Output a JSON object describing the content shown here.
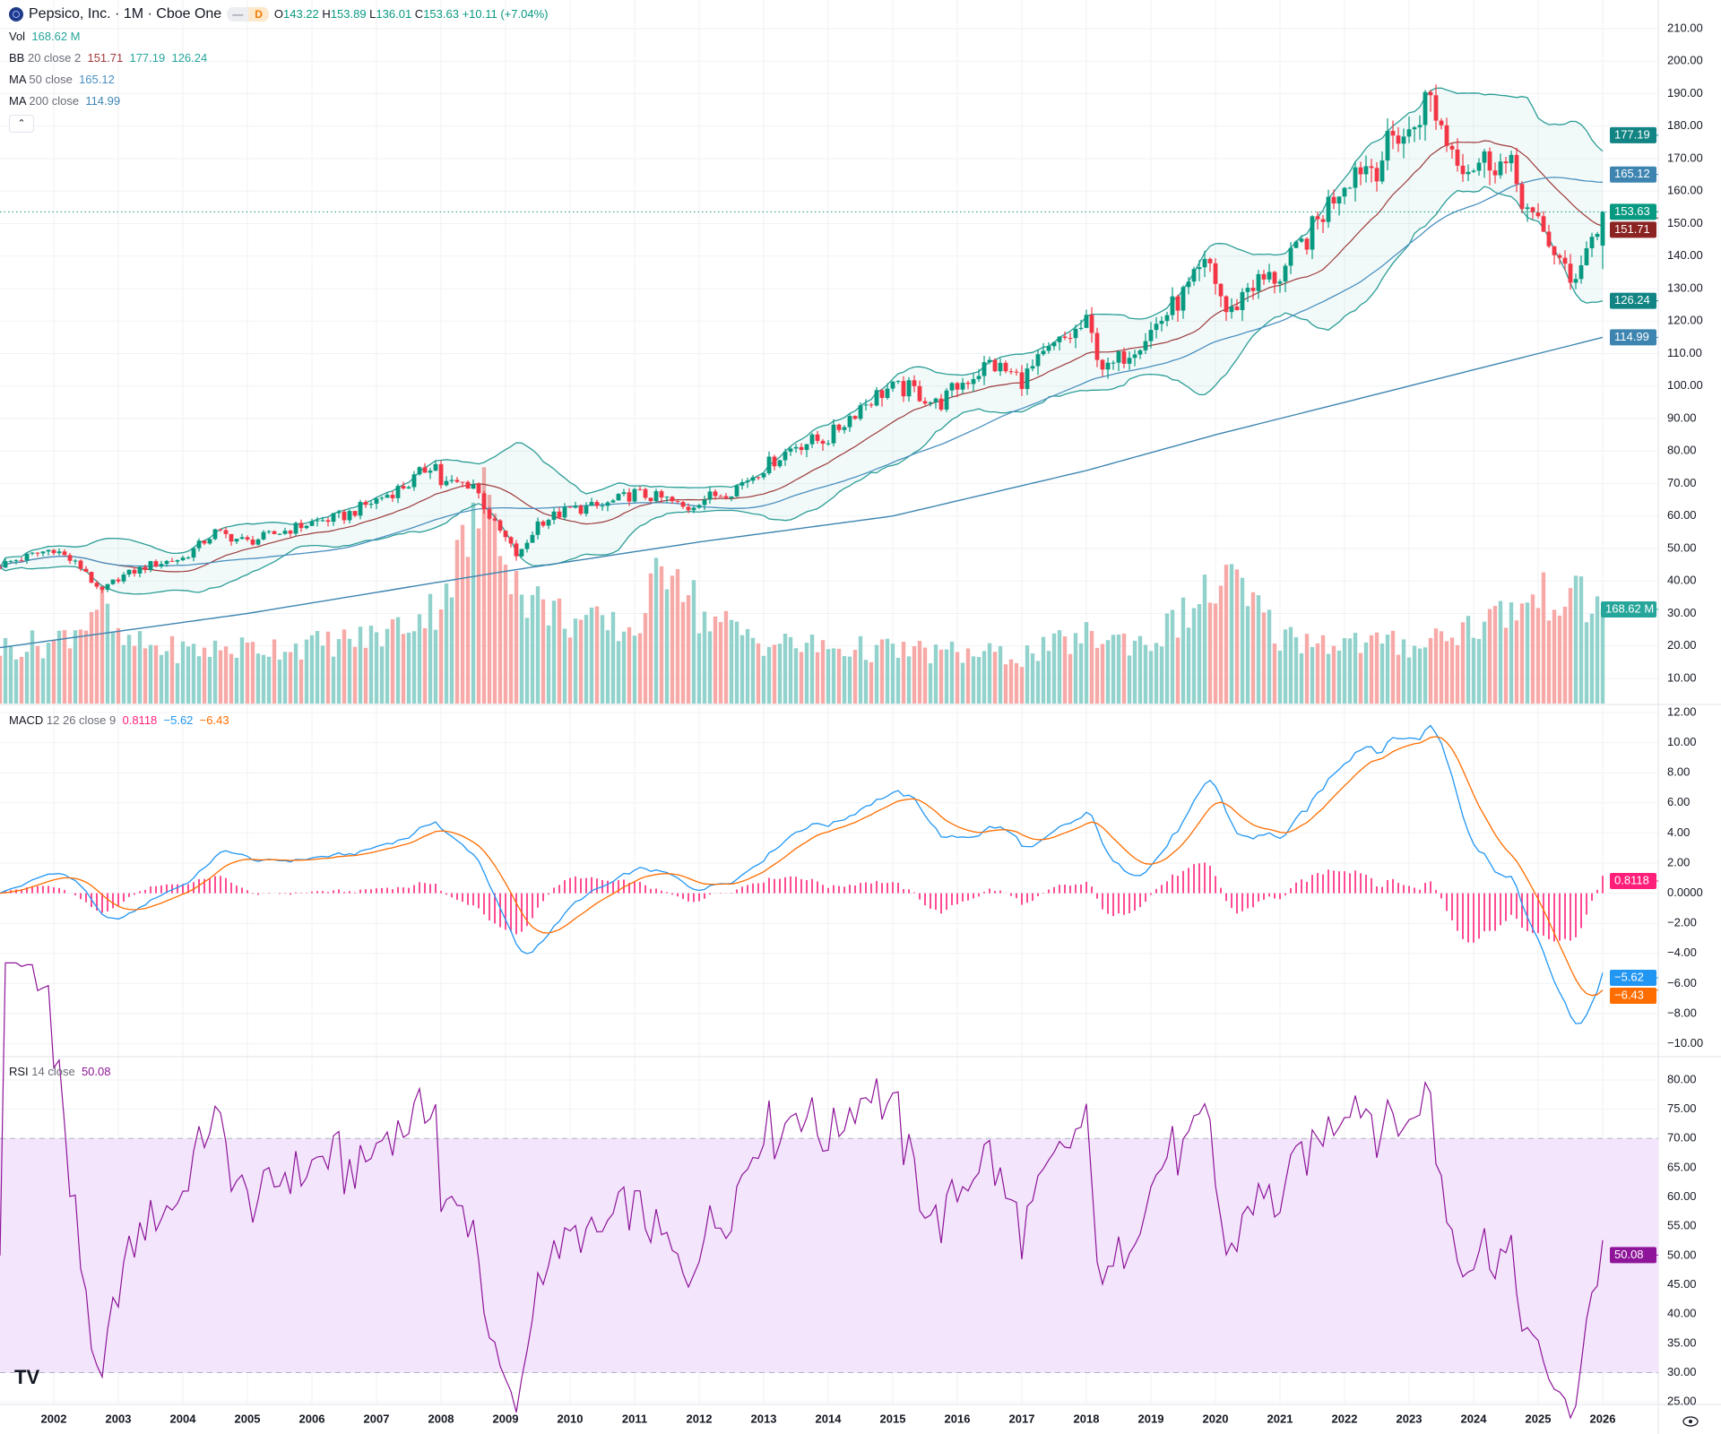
{
  "header": {
    "title": "Pepsico, Inc. · 1M · Cboe One",
    "pill_left": "—",
    "pill_right": "D",
    "ohlc": {
      "o_label": "O",
      "o": "143.22",
      "h_label": "H",
      "h": "153.89",
      "l_label": "L",
      "l": "136.01",
      "c_label": "C",
      "c": "153.63",
      "change": "+10.11 (+7.04%)"
    }
  },
  "legends": {
    "vol": {
      "name": "Vol",
      "value": "168.62 M"
    },
    "bb": {
      "name": "BB",
      "params": "20 close 2",
      "basis": "151.71",
      "upper": "177.19",
      "lower": "126.24"
    },
    "ma50": {
      "name": "MA",
      "params": "50 close",
      "value": "165.12"
    },
    "ma200": {
      "name": "MA",
      "params": "200 close",
      "value": "114.99"
    },
    "macd": {
      "name": "MACD",
      "params": "12 26 close 9",
      "hist": "0.8118",
      "macd": "−5.62",
      "signal": "−6.43"
    },
    "rsi": {
      "name": "RSI",
      "params": "14 close",
      "value": "50.08"
    },
    "collapse_icon": "chevron-up"
  },
  "colors": {
    "up": "#089981",
    "down": "#f23645",
    "vol_up": "#92d2cc",
    "vol_down": "#f7a9a7",
    "bb": "#2a9d96",
    "bb_basis": "#9c3b3b",
    "ma50": "#4a90c0",
    "ma200": "#3d85b0",
    "macd": "#2196f3",
    "signal": "#ff6d00",
    "hist": "#ff1f7a",
    "rsi": "#8e1599",
    "rsi_band": "#f3e5fc"
  },
  "chart_data": {
    "type": "candlestick",
    "interval": "1M",
    "x_start": "2001-03",
    "x_end": "2026-01",
    "price_keypoints": [
      [
        2001.17,
        45
      ],
      [
        2002.0,
        50
      ],
      [
        2002.5,
        43
      ],
      [
        2002.7,
        36
      ],
      [
        2003.0,
        41
      ],
      [
        2003.5,
        45
      ],
      [
        2004.0,
        47
      ],
      [
        2004.5,
        55
      ],
      [
        2005.0,
        52
      ],
      [
        2005.5,
        55
      ],
      [
        2006.0,
        58
      ],
      [
        2006.5,
        60
      ],
      [
        2007.0,
        65
      ],
      [
        2007.5,
        70
      ],
      [
        2007.9,
        77
      ],
      [
        2008.0,
        70
      ],
      [
        2008.5,
        70
      ],
      [
        2008.8,
        58
      ],
      [
        2009.0,
        53
      ],
      [
        2009.2,
        47
      ],
      [
        2009.5,
        58
      ],
      [
        2010.0,
        62
      ],
      [
        2010.5,
        63
      ],
      [
        2011.0,
        67
      ],
      [
        2011.5,
        65
      ],
      [
        2011.8,
        62
      ],
      [
        2012.0,
        65
      ],
      [
        2012.5,
        68
      ],
      [
        2013.0,
        75
      ],
      [
        2013.5,
        82
      ],
      [
        2014.0,
        84
      ],
      [
        2014.5,
        94
      ],
      [
        2014.9,
        99
      ],
      [
        2015.3,
        99
      ],
      [
        2015.7,
        94
      ],
      [
        2016.0,
        100
      ],
      [
        2016.5,
        107
      ],
      [
        2017.0,
        102
      ],
      [
        2017.5,
        112
      ],
      [
        2018.0,
        119
      ],
      [
        2018.3,
        104
      ],
      [
        2018.6,
        110
      ],
      [
        2019.0,
        117
      ],
      [
        2019.5,
        128
      ],
      [
        2019.9,
        138
      ],
      [
        2020.2,
        121
      ],
      [
        2020.5,
        131
      ],
      [
        2021.0,
        134
      ],
      [
        2021.5,
        148
      ],
      [
        2021.9,
        161
      ],
      [
        2022.2,
        168
      ],
      [
        2022.5,
        168
      ],
      [
        2022.8,
        178
      ],
      [
        2023.0,
        177
      ],
      [
        2023.3,
        190
      ],
      [
        2023.6,
        175
      ],
      [
        2023.9,
        168
      ],
      [
        2024.3,
        170
      ],
      [
        2024.6,
        166
      ],
      [
        2024.9,
        151
      ],
      [
        2025.2,
        144
      ],
      [
        2025.5,
        131
      ],
      [
        2025.7,
        141
      ],
      [
        2025.9,
        148
      ],
      [
        2026.0,
        153.63
      ]
    ],
    "last_candle": {
      "open": 143.22,
      "high": 153.89,
      "low": 136.01,
      "close": 153.63
    },
    "volume_keypoints_millions": [
      [
        2001.17,
        100
      ],
      [
        2002.0,
        110
      ],
      [
        2002.5,
        150
      ],
      [
        2002.7,
        190
      ],
      [
        2003.0,
        110
      ],
      [
        2004.0,
        95
      ],
      [
        2005.0,
        100
      ],
      [
        2006.0,
        105
      ],
      [
        2007.0,
        120
      ],
      [
        2007.9,
        170
      ],
      [
        2008.8,
        385
      ],
      [
        2009.2,
        200
      ],
      [
        2010.0,
        150
      ],
      [
        2011.0,
        130
      ],
      [
        2011.6,
        280
      ],
      [
        2012.0,
        160
      ],
      [
        2013.0,
        110
      ],
      [
        2014.0,
        100
      ],
      [
        2015.0,
        95
      ],
      [
        2016.0,
        90
      ],
      [
        2017.0,
        85
      ],
      [
        2018.0,
        120
      ],
      [
        2019.0,
        110
      ],
      [
        2020.2,
        224
      ],
      [
        2021.0,
        120
      ],
      [
        2022.0,
        110
      ],
      [
        2023.0,
        105
      ],
      [
        2024.0,
        140
      ],
      [
        2025.3,
        200
      ],
      [
        2026.0,
        168.62
      ]
    ],
    "ma200_keypoints": [
      [
        2001.17,
        19.5
      ],
      [
        2005.0,
        30
      ],
      [
        2009.0,
        43
      ],
      [
        2012.0,
        52
      ],
      [
        2015.0,
        60
      ],
      [
        2018.0,
        74
      ],
      [
        2020.0,
        85
      ],
      [
        2023.0,
        100
      ],
      [
        2026.0,
        114.99
      ]
    ],
    "price_axis": {
      "ticks": [
        10,
        20,
        30,
        40,
        50,
        60,
        70,
        80,
        90,
        100,
        110,
        120,
        130,
        140,
        150,
        160,
        170,
        180,
        190,
        200,
        210
      ],
      "range": [
        10,
        210
      ]
    },
    "volume_last": "168.62 M",
    "macd_axis": {
      "ticks": [
        "12.00",
        "10.00",
        "8.00",
        "6.00",
        "4.00",
        "2.00",
        "0.0000",
        "−2.00",
        "−4.00",
        "−6.00",
        "−8.00",
        "−10.00"
      ],
      "values": [
        12,
        10,
        8,
        6,
        4,
        2,
        0,
        -2,
        -4,
        -6,
        -8,
        -10
      ]
    },
    "rsi_axis": {
      "ticks": [
        "80.00",
        "75.00",
        "70.00",
        "65.00",
        "60.00",
        "55.00",
        "50.00",
        "45.00",
        "40.00",
        "35.00",
        "30.00",
        "25.00"
      ],
      "values": [
        80,
        75,
        70,
        65,
        60,
        55,
        50,
        45,
        40,
        35,
        30,
        25
      ],
      "band": [
        30,
        70
      ]
    },
    "x_ticks": [
      "2002",
      "2003",
      "2004",
      "2005",
      "2006",
      "2007",
      "2008",
      "2009",
      "2010",
      "2011",
      "2012",
      "2013",
      "2014",
      "2015",
      "2016",
      "2017",
      "2018",
      "2019",
      "2020",
      "2021",
      "2022",
      "2023",
      "2024",
      "2025",
      "2026"
    ],
    "badges": {
      "bb_upper": "177.19",
      "ma50": "165.12",
      "close": "153.63",
      "bb_basis": "151.71",
      "bb_lower": "126.24",
      "ma200": "114.99",
      "volume": "168.62 M",
      "macd_hist": "0.8118",
      "macd": "−5.62",
      "signal": "−6.43",
      "rsi": "50.08"
    }
  },
  "footer": {
    "brand": "TV"
  }
}
